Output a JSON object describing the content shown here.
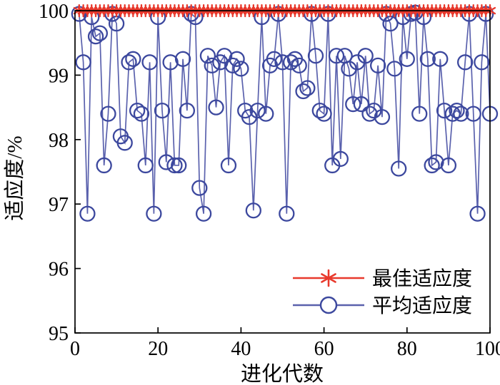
{
  "figure": {
    "background": "#ffffff",
    "axis_color": "#000000"
  },
  "chart_data": {
    "type": "line",
    "title": "",
    "xlabel": "进化代数",
    "ylabel": "适应度/%",
    "xlim": [
      0,
      100
    ],
    "ylim": [
      95,
      100
    ],
    "x_ticks": [
      0,
      20,
      40,
      60,
      80,
      100
    ],
    "y_ticks": [
      95,
      96,
      97,
      98,
      99,
      100
    ],
    "grid": false,
    "legend_position": "inside lower right",
    "x": [
      1,
      2,
      3,
      4,
      5,
      6,
      7,
      8,
      9,
      10,
      11,
      12,
      13,
      14,
      15,
      16,
      17,
      18,
      19,
      20,
      21,
      22,
      23,
      24,
      25,
      26,
      27,
      28,
      29,
      30,
      31,
      32,
      33,
      34,
      35,
      36,
      37,
      38,
      39,
      40,
      41,
      42,
      43,
      44,
      45,
      46,
      47,
      48,
      49,
      50,
      51,
      52,
      53,
      54,
      55,
      56,
      57,
      58,
      59,
      60,
      61,
      62,
      63,
      64,
      65,
      66,
      67,
      68,
      69,
      70,
      71,
      72,
      73,
      74,
      75,
      76,
      77,
      78,
      79,
      80,
      81,
      82,
      83,
      84,
      85,
      86,
      87,
      88,
      89,
      90,
      91,
      92,
      93,
      94,
      95,
      96,
      97,
      98,
      99,
      100
    ],
    "series": [
      {
        "name": "最佳适应度",
        "marker": "asterisk",
        "color": "#e8392c",
        "line_color": "#e8392c",
        "values": [
          100,
          100,
          100,
          100,
          100,
          100,
          100,
          100,
          100,
          100,
          100,
          100,
          100,
          100,
          100,
          100,
          100,
          100,
          100,
          100,
          100,
          100,
          100,
          100,
          100,
          100,
          100,
          100,
          100,
          100,
          100,
          100,
          100,
          100,
          100,
          100,
          100,
          100,
          100,
          100,
          100,
          100,
          100,
          100,
          100,
          100,
          100,
          100,
          100,
          100,
          100,
          100,
          100,
          100,
          100,
          100,
          100,
          100,
          100,
          100,
          100,
          100,
          100,
          100,
          100,
          100,
          100,
          100,
          100,
          100,
          100,
          100,
          100,
          100,
          100,
          100,
          100,
          100,
          100,
          100,
          100,
          100,
          100,
          100,
          100,
          100,
          100,
          100,
          100,
          100,
          100,
          100,
          100,
          100,
          100,
          100,
          100,
          100,
          100,
          100
        ]
      },
      {
        "name": "平均适应度",
        "marker": "circle",
        "color": "#3c489e",
        "line_color": "#5a61ad",
        "values": [
          99.95,
          99.2,
          96.85,
          99.9,
          99.6,
          99.65,
          97.6,
          98.4,
          99.95,
          99.8,
          98.05,
          97.95,
          99.2,
          99.25,
          98.45,
          98.4,
          97.6,
          99.2,
          96.85,
          99.9,
          98.45,
          97.65,
          99.2,
          97.6,
          97.6,
          99.25,
          98.45,
          99.95,
          99.9,
          97.25,
          96.85,
          99.3,
          99.15,
          98.5,
          99.2,
          99.3,
          97.6,
          99.15,
          99.25,
          99.1,
          98.45,
          98.35,
          96.9,
          98.45,
          99.9,
          98.4,
          99.15,
          99.25,
          99.95,
          99.2,
          96.85,
          99.2,
          99.25,
          99.15,
          98.75,
          98.8,
          99.95,
          99.3,
          98.45,
          98.4,
          99.95,
          97.6,
          99.3,
          97.7,
          99.3,
          99.1,
          98.55,
          99.2,
          98.55,
          99.3,
          98.4,
          98.45,
          99.15,
          98.35,
          99.95,
          99.8,
          99.1,
          97.55,
          99.9,
          99.25,
          99.95,
          99.97,
          98.4,
          99.9,
          99.25,
          97.6,
          97.65,
          99.25,
          98.45,
          97.6,
          98.4,
          98.45,
          98.4,
          99.2,
          99.95,
          98.4,
          96.85,
          99.2,
          99.95,
          98.4
        ]
      }
    ]
  }
}
